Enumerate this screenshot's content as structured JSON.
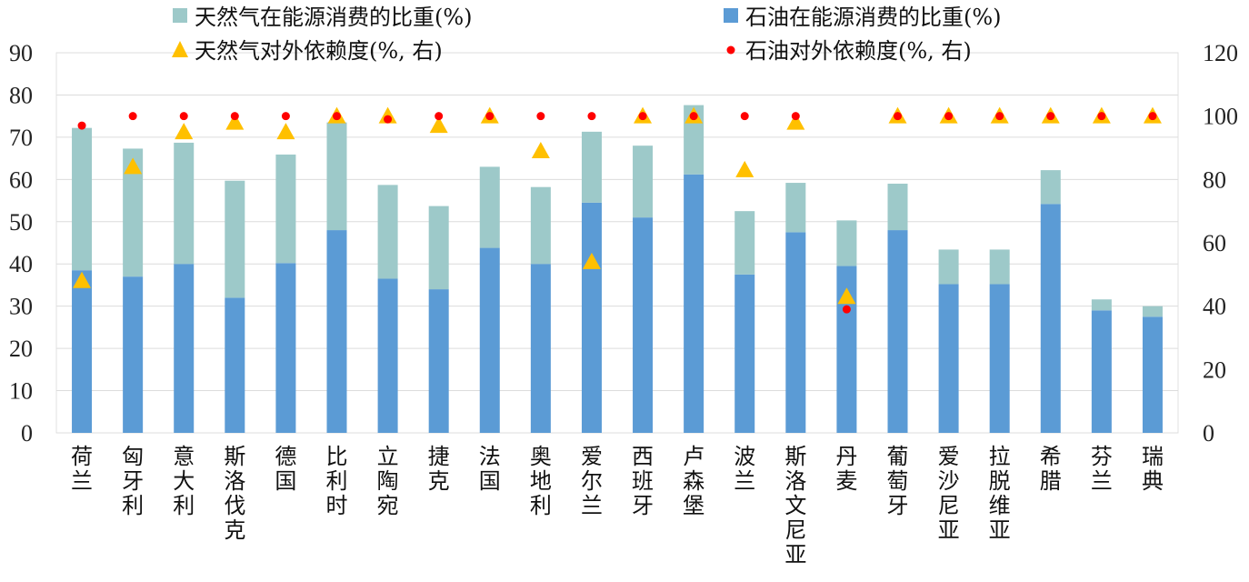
{
  "chart_data": {
    "type": "bar",
    "categories": [
      "荷兰",
      "匈牙利",
      "意大利",
      "斯洛伐克",
      "德国",
      "比利时",
      "立陶宛",
      "捷克",
      "法国",
      "奥地利",
      "爱尔兰",
      "西班牙",
      "卢森堡",
      "波兰",
      "斯洛文尼亚",
      "丹麦",
      "葡萄牙",
      "爱沙尼亚",
      "拉脱维亚",
      "希腊",
      "芬兰",
      "瑞典"
    ],
    "stacked": true,
    "y_left": {
      "range": [
        0,
        90
      ],
      "ticks": [
        0,
        10,
        20,
        30,
        40,
        50,
        60,
        70,
        80,
        90
      ]
    },
    "y_right": {
      "range": [
        0,
        120
      ],
      "ticks": [
        0,
        20,
        40,
        60,
        80,
        100,
        120
      ]
    },
    "legend_position": "top",
    "grid": true,
    "series": [
      {
        "name": "石油在能源消费的比重(%)",
        "type": "bar",
        "axis": "left",
        "color": "#5b9bd5",
        "values": [
          38.5,
          37,
          40,
          32,
          40.2,
          48,
          36.5,
          34,
          43.8,
          40,
          54.5,
          51,
          61.2,
          37.5,
          47.5,
          39.5,
          48,
          35.2,
          35.2,
          54.2,
          29,
          27.5
        ]
      },
      {
        "name": "天然气在能源消费的比重(%)",
        "type": "bar",
        "axis": "left",
        "color": "#9dc9c9",
        "values": [
          33.7,
          30.3,
          28.7,
          27.7,
          25.7,
          25.5,
          22.2,
          19.7,
          19.2,
          18.2,
          16.8,
          17,
          16.4,
          15,
          11.7,
          10.8,
          11,
          8.2,
          8.2,
          8.0,
          2.6,
          2.5
        ]
      },
      {
        "name": "天然气对外依赖度(%, 右)",
        "type": "scatter",
        "marker": "triangle",
        "axis": "right",
        "color": "#ffc000",
        "values": [
          48,
          84,
          95,
          98,
          95,
          100,
          100,
          97,
          100,
          89,
          54,
          100,
          100,
          83,
          98,
          43,
          100,
          100,
          100,
          100,
          100,
          100
        ]
      },
      {
        "name": "石油对外依赖度(%, 右)",
        "type": "scatter",
        "marker": "circle",
        "axis": "right",
        "color": "#ff0000",
        "values": [
          97,
          100,
          100,
          100,
          100,
          100,
          99,
          100,
          100,
          100,
          100,
          100,
          100,
          100,
          100,
          39,
          100,
          100,
          100,
          100,
          100,
          100
        ]
      }
    ]
  }
}
